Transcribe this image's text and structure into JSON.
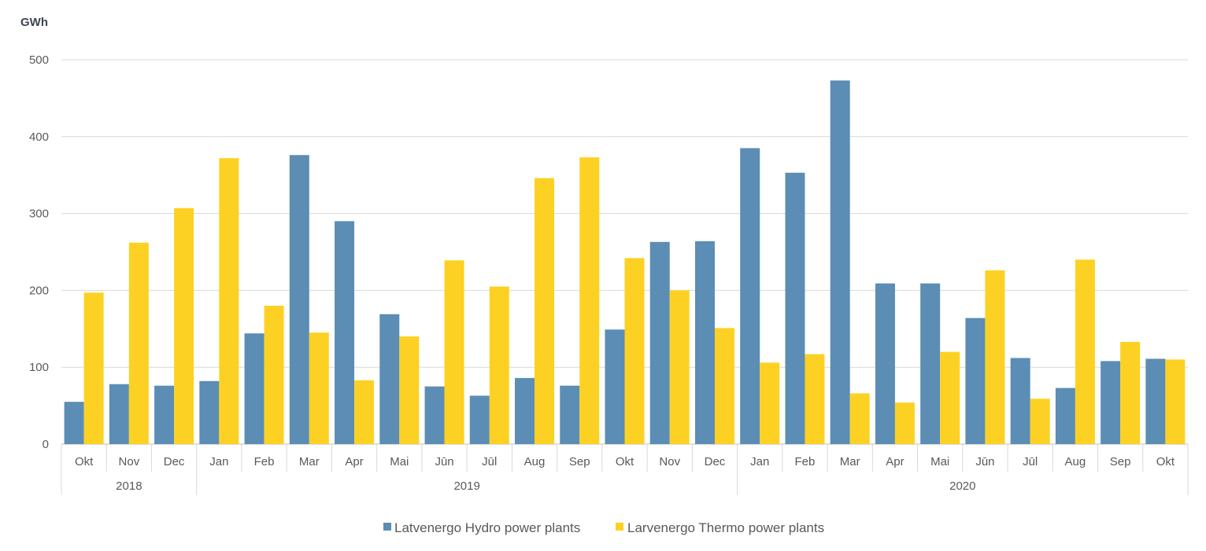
{
  "chart_data": {
    "type": "bar",
    "ylabel": "GWh",
    "ylim": [
      0,
      500
    ],
    "yticks": [
      0,
      100,
      200,
      300,
      400,
      500
    ],
    "grid": true,
    "legend_position": "bottom",
    "categories": [
      "Okt",
      "Nov",
      "Dec",
      "Jan",
      "Feb",
      "Mar",
      "Apr",
      "Mai",
      "Jūn",
      "Jūl",
      "Aug",
      "Sep",
      "Okt",
      "Nov",
      "Dec",
      "Jan",
      "Feb",
      "Mar",
      "Apr",
      "Mai",
      "Jūn",
      "Jūl",
      "Aug",
      "Sep",
      "Okt"
    ],
    "year_groups": [
      {
        "label": "2018",
        "count": 3
      },
      {
        "label": "2019",
        "count": 12
      },
      {
        "label": "2020",
        "count": 10
      }
    ],
    "series": [
      {
        "name": "Latvenergo Hydro power plants",
        "color": "#5b8db5",
        "values": [
          55,
          78,
          76,
          82,
          144,
          376,
          290,
          169,
          75,
          63,
          86,
          76,
          149,
          263,
          264,
          385,
          353,
          473,
          209,
          209,
          164,
          112,
          73,
          108,
          111
        ]
      },
      {
        "name": "Larvenergo Thermo power plants",
        "color": "#fdd123",
        "values": [
          197,
          262,
          307,
          372,
          180,
          145,
          83,
          140,
          239,
          205,
          346,
          373,
          242,
          200,
          151,
          106,
          117,
          66,
          54,
          120,
          226,
          59,
          240,
          133,
          110
        ]
      }
    ]
  }
}
